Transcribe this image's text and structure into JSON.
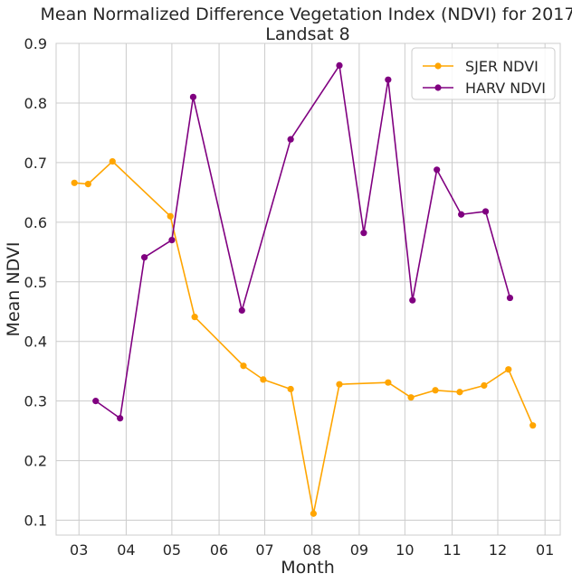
{
  "chart_data": {
    "type": "line",
    "title": "Mean Normalized Difference Vegetation Index (NDVI) for 2017",
    "subtitle": "Landsat 8",
    "xlabel": "Month",
    "ylabel": "Mean NDVI",
    "xlim": [
      "2017-02-14",
      "2018-01-11"
    ],
    "ylim": [
      0.075,
      0.9
    ],
    "x_ticks": [
      "2017-03-01",
      "2017-04-01",
      "2017-05-01",
      "2017-06-01",
      "2017-07-01",
      "2017-08-01",
      "2017-09-01",
      "2017-10-01",
      "2017-11-01",
      "2017-12-01",
      "2018-01-01"
    ],
    "x_tick_labels": [
      "03",
      "04",
      "05",
      "06",
      "07",
      "08",
      "09",
      "10",
      "11",
      "12",
      "01"
    ],
    "y_ticks": [
      0.1,
      0.2,
      0.3,
      0.4,
      0.5,
      0.6,
      0.7,
      0.8,
      0.9
    ],
    "y_tick_labels": [
      "0.1",
      "0.2",
      "0.3",
      "0.4",
      "0.5",
      "0.6",
      "0.7",
      "0.8",
      "0.9"
    ],
    "grid": true,
    "legend_position": "top-right",
    "series": [
      {
        "name": "SJER NDVI",
        "color": "#ffa500",
        "points": [
          {
            "x": "2017-02-26",
            "y": 0.666
          },
          {
            "x": "2017-03-07",
            "y": 0.664
          },
          {
            "x": "2017-03-23",
            "y": 0.702
          },
          {
            "x": "2017-04-30",
            "y": 0.61
          },
          {
            "x": "2017-05-16",
            "y": 0.441
          },
          {
            "x": "2017-06-17",
            "y": 0.359
          },
          {
            "x": "2017-06-30",
            "y": 0.336
          },
          {
            "x": "2017-07-18",
            "y": 0.32
          },
          {
            "x": "2017-08-02",
            "y": 0.111
          },
          {
            "x": "2017-08-19",
            "y": 0.328
          },
          {
            "x": "2017-09-20",
            "y": 0.331
          },
          {
            "x": "2017-10-05",
            "y": 0.306
          },
          {
            "x": "2017-10-21",
            "y": 0.318
          },
          {
            "x": "2017-11-06",
            "y": 0.315
          },
          {
            "x": "2017-11-22",
            "y": 0.326
          },
          {
            "x": "2017-12-08",
            "y": 0.353
          },
          {
            "x": "2017-12-24",
            "y": 0.259
          }
        ]
      },
      {
        "name": "HARV NDVI",
        "color": "#800080",
        "points": [
          {
            "x": "2017-03-12",
            "y": 0.3
          },
          {
            "x": "2017-03-28",
            "y": 0.271
          },
          {
            "x": "2017-04-13",
            "y": 0.541
          },
          {
            "x": "2017-05-01",
            "y": 0.57
          },
          {
            "x": "2017-05-15",
            "y": 0.81
          },
          {
            "x": "2017-06-16",
            "y": 0.452
          },
          {
            "x": "2017-07-18",
            "y": 0.739
          },
          {
            "x": "2017-08-19",
            "y": 0.863
          },
          {
            "x": "2017-09-04",
            "y": 0.582
          },
          {
            "x": "2017-09-20",
            "y": 0.839
          },
          {
            "x": "2017-10-06",
            "y": 0.469
          },
          {
            "x": "2017-10-22",
            "y": 0.688
          },
          {
            "x": "2017-11-07",
            "y": 0.613
          },
          {
            "x": "2017-11-23",
            "y": 0.618
          },
          {
            "x": "2017-12-09",
            "y": 0.473
          }
        ]
      }
    ]
  }
}
